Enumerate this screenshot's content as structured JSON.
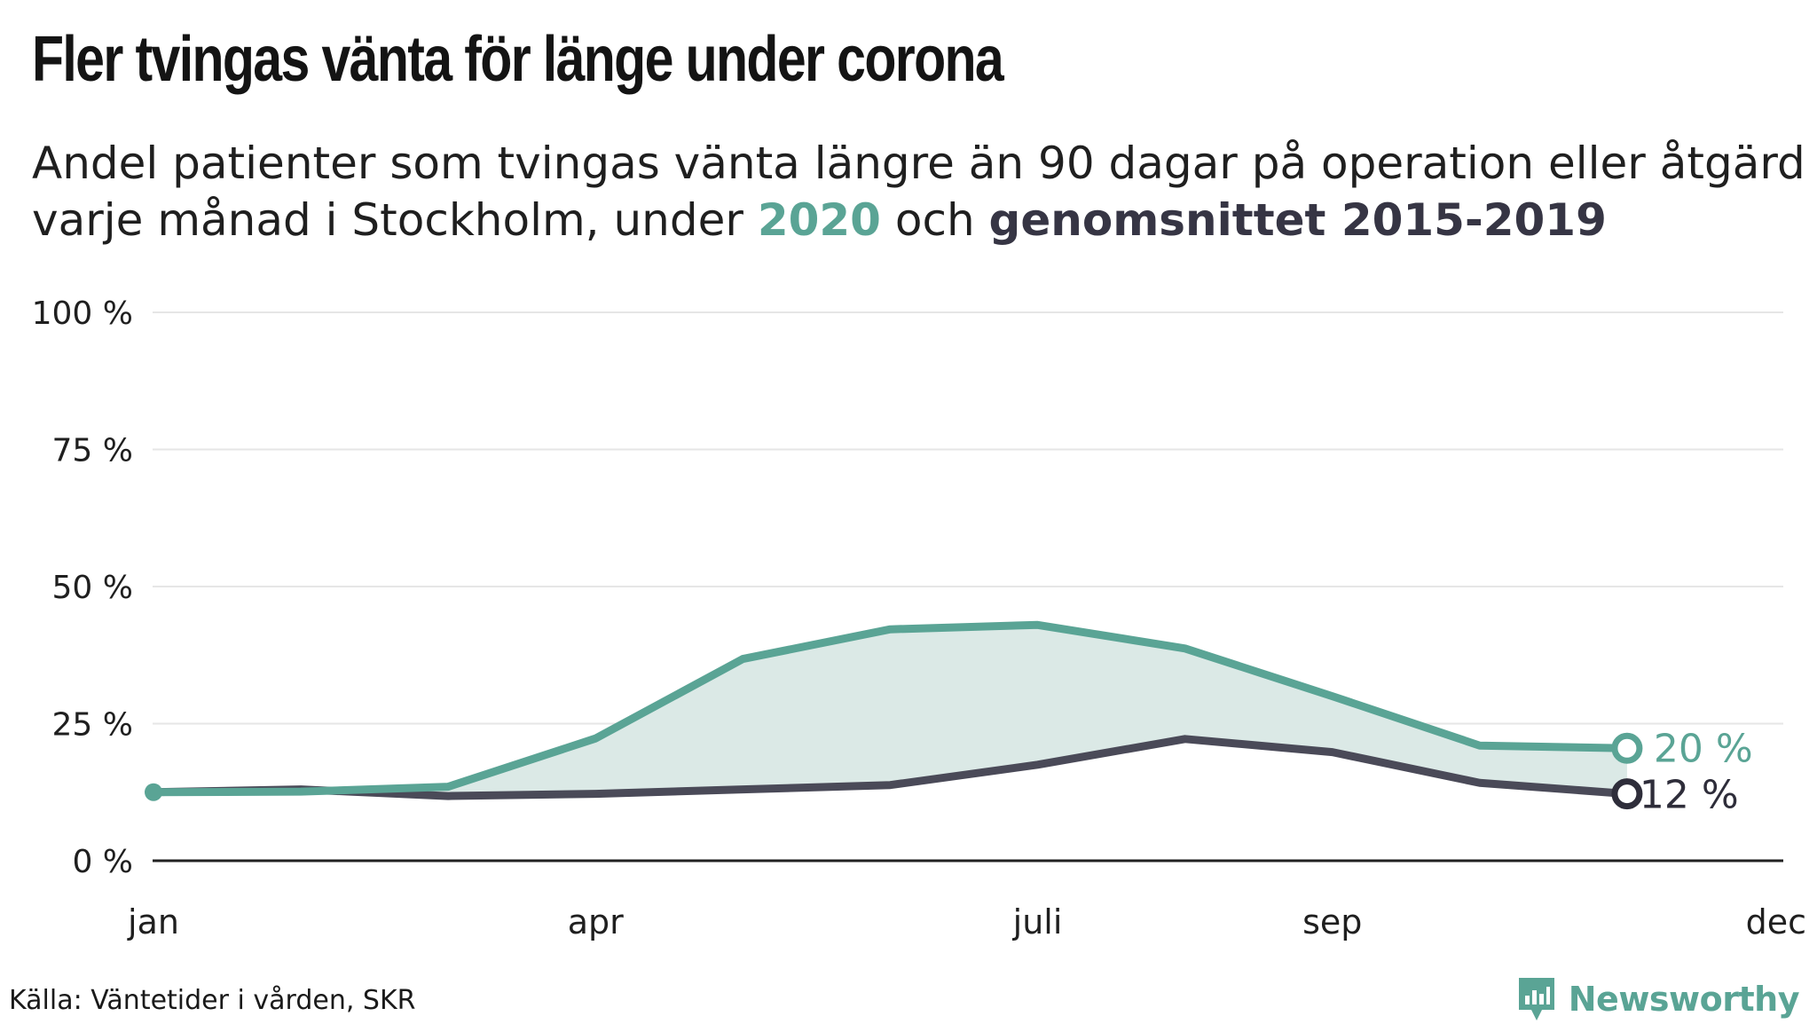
{
  "header": {
    "title": "Fler tvingas vänta för länge under corona",
    "subtitle_line1": "Andel patienter som tvingas vänta längre än 90 dagar på operation eller åtgärd",
    "subtitle_line2_prefix": "varje månad i Stockholm, under ",
    "subtitle_highlight_2020": "2020",
    "subtitle_middle": " och ",
    "subtitle_highlight_avg": "genomsnittet 2015-2019"
  },
  "footer": {
    "source": "Källa: Väntetider i vården, SKR",
    "brand": "Newsworthy"
  },
  "colors": {
    "series_2020": "#5aa495",
    "series_avg": "#4a4a58",
    "fill_between": "#dbe9e6",
    "grid": "#e6e6e6",
    "axis": "#222222"
  },
  "chart_data": {
    "type": "line",
    "x_tick_labels": [
      "jan",
      "apr",
      "juli",
      "sep",
      "dec"
    ],
    "x_tick_months": [
      1,
      4,
      7,
      9,
      12
    ],
    "x_range": [
      1,
      12
    ],
    "y_tick_labels": [
      "0 %",
      "25 %",
      "50 %",
      "75 %",
      "100 %"
    ],
    "y_ticks": [
      0,
      25,
      50,
      75,
      100
    ],
    "ylim": [
      0,
      100
    ],
    "grid": true,
    "fill_between_series": true,
    "series": [
      {
        "name": "2020",
        "months": [
          1,
          2,
          3,
          4,
          5,
          6,
          7,
          8,
          9,
          10,
          11
        ],
        "values": [
          12.5,
          12.6,
          13.5,
          22.3,
          36.8,
          42.2,
          43.0,
          38.7,
          30.0,
          21.0,
          20.5
        ],
        "end_label": "20 %"
      },
      {
        "name": "genomsnittet 2015-2019",
        "months": [
          1,
          2,
          3,
          4,
          5,
          6,
          7,
          8,
          9,
          10,
          11
        ],
        "values": [
          12.5,
          13.0,
          11.8,
          12.2,
          13.0,
          13.8,
          17.5,
          22.2,
          19.8,
          14.2,
          12.2
        ],
        "end_label": "12 %"
      }
    ]
  }
}
